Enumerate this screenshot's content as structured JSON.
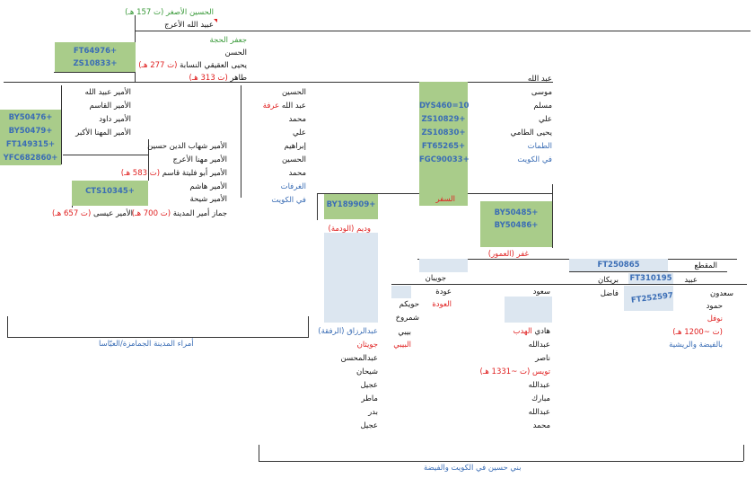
{
  "colors": {
    "green": "#3a9a3a",
    "red": "#e02020",
    "blue": "#3a6db5",
    "green_box": "#a9cc8a",
    "blue_box": "#dce6f0"
  },
  "top": {
    "hussein_asghar": "الحسين الأصغر (ت 157 هـ)",
    "ubaidullah": "عبيد الله الأعرج",
    "jafar": "جعفر الحجة",
    "hasan": "الحسن",
    "yahya_name": "يحيى العقيقي النسابة",
    "yahya_date": "(ت 277 هـ)",
    "taher_name": "طاهر",
    "taher_date": "(ت 313 هـ)"
  },
  "boxes": {
    "ft64976": "FT64976+",
    "zs10833": "ZS10833+",
    "left4": [
      "BY50476+",
      "BY50479+",
      "FT149315+",
      "YFC682860+"
    ],
    "cts": "CTS10345+",
    "mid": [
      "DYS460=10",
      "ZS10829+",
      "ZS10830+",
      "FT65265+",
      "FGC90033+"
    ],
    "by189909": "BY189909+",
    "by50485": "BY50485+",
    "by50486": "BY50486+",
    "ft250865": "FT250865",
    "ft310195": "FT310195",
    "ft252597": "FT252597"
  },
  "right_col": {
    "names": [
      "عبد الله",
      "موسى",
      "مسلم",
      "علي",
      "يحيى الطامي"
    ],
    "tamat": "الطمات",
    "in_kuwait": "في الكويت"
  },
  "middle_col": {
    "names": [
      "الحسين",
      "عبد الله",
      "محمد",
      "علي",
      "إبراهيم",
      "الحسين",
      "محمد"
    ],
    "arqa": "عرفة",
    "gharfat": "الغرفات",
    "in_kuwait": "في الكويت"
  },
  "princes": [
    "الأمير عبيد الله",
    "الأمير القاسم",
    "الأمير داود",
    "الأمير المهنا الأكبر"
  ],
  "princes2": {
    "shihab": "الأمير شهاب الدين حسين",
    "muhanna": "الأمير مهنا الأعرج",
    "abu_fulayta_name": "الأمير أبو فليتة قاسم",
    "abu_fulayta_date": "(ت 583 هـ)",
    "hashim": "الأمير هاشم",
    "shiha": "الأمير شيحة",
    "jammaz_name": "جماز أمير المدينة",
    "jammaz_date": "(ت 700 هـ)",
    "isa_name": "الأمير عيسى",
    "isa_date": "(ت 657 هـ)"
  },
  "safar": "السفر",
  "wadim": "وديم (الودمة)",
  "ghafr": "غفر (العمور)",
  "juwayban": "جويبان",
  "odah": "عودة",
  "odah_red": "العودة",
  "saud": "سعود",
  "huwaykim": [
    "حويكم",
    "شمروخ",
    "بيبي"
  ],
  "bibi_red": "البيبي",
  "left_list": {
    "abdulrazzaq": "عبدالرزاق (الرفقة)",
    "juwaythan": "جويثان",
    "names": [
      "عبدالمحسن",
      "شيحان",
      "عجيل",
      "ماطر",
      "بدر",
      "عجيل"
    ]
  },
  "right_list": {
    "hadi": "هادي",
    "hadab": "الهدب",
    "names1": [
      "عبدالله",
      "ناصر"
    ],
    "tuwaysan": "تويس (ت ~1331 هـ)",
    "names2": [
      "عبدالله",
      "مبارك",
      "عبدالله",
      "محمد"
    ]
  },
  "far_right": {
    "muqatta": "المقطع",
    "ubaid": "عبيد",
    "brikan": "بريكان",
    "fadel": "فاضل",
    "saadun": "سعدون",
    "hammud": "حمود",
    "nawfal": "نوفل",
    "date": "(ت ~1200 هـ)",
    "place": "بالفيضة والريشية"
  },
  "captions": {
    "madina": "أمراء المدينة الجمامزة/العيّاسا",
    "bani_hussein": "بني حسين في الكويت والفيضة"
  }
}
